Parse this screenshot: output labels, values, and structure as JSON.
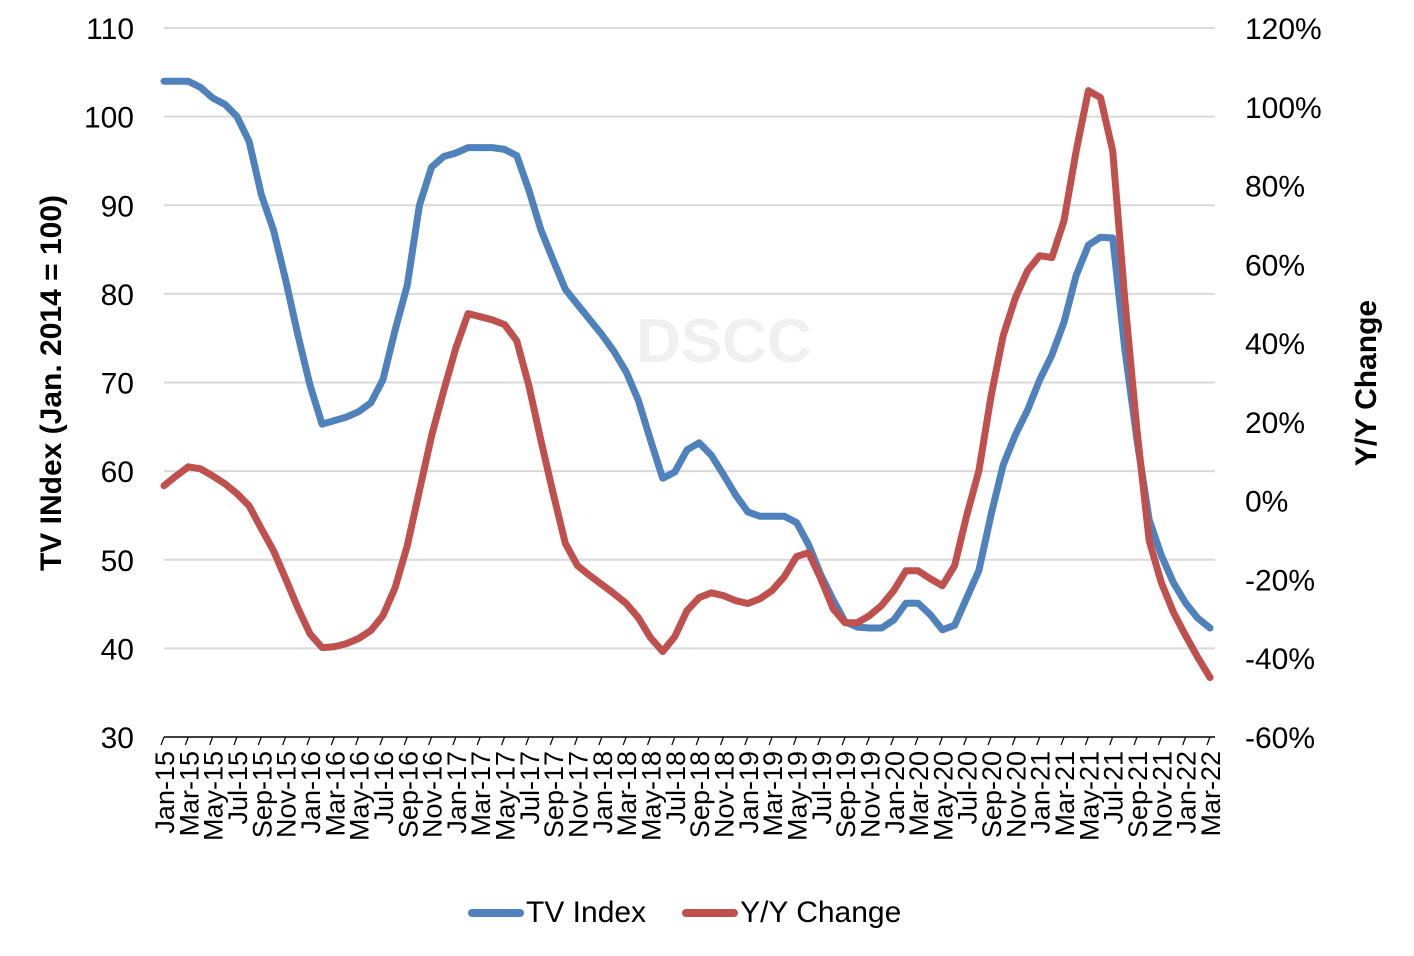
{
  "chart_data": {
    "type": "line",
    "title": "",
    "watermark": "DSCC",
    "ylabel": "TV INdex (Jan. 2014 = 100)",
    "y2label": "Y/Y Change",
    "ylim": [
      30,
      110
    ],
    "y2lim": [
      -60,
      120
    ],
    "yticks": [
      30,
      40,
      50,
      60,
      70,
      80,
      90,
      100,
      110
    ],
    "y2ticks": [
      "-60%",
      "-40%",
      "-20%",
      "0%",
      "20%",
      "40%",
      "60%",
      "80%",
      "100%",
      "120%"
    ],
    "grid": true,
    "legend_position": "bottom",
    "xtick_labels": [
      "Jan-15",
      "Mar-15",
      "May-15",
      "Jul-15",
      "Sep-15",
      "Nov-15",
      "Jan-16",
      "Mar-16",
      "May-16",
      "Jul-16",
      "Sep-16",
      "Nov-16",
      "Jan-17",
      "Mar-17",
      "May-17",
      "Jul-17",
      "Sep-17",
      "Nov-17",
      "Jan-18",
      "Mar-18",
      "May-18",
      "Jul-18",
      "Sep-18",
      "Nov-18",
      "Jan-19",
      "Mar-19",
      "May-19",
      "Jul-19",
      "Sep-19",
      "Nov-19",
      "Jan-20",
      "Mar-20",
      "May-20",
      "Jul-20",
      "Sep-20",
      "Nov-20",
      "Jan-21",
      "Mar-21",
      "May-21",
      "Jul-21",
      "Sep-21",
      "Nov-21",
      "Jan-22",
      "Mar-22"
    ],
    "x_start": "Jan-15",
    "x_end": "Mar-22",
    "x_frequency": "monthly",
    "series": [
      {
        "name": "TV Index",
        "axis": "left",
        "color": "#4f81bd",
        "values": [
          104,
          104,
          104,
          103.3,
          102.1,
          101.4,
          100,
          97.2,
          91.2,
          87.2,
          81.6,
          75.4,
          69.7,
          65.3,
          65.7,
          66.1,
          66.7,
          67.7,
          70.3,
          75.9,
          81,
          90,
          94.3,
          95.5,
          95.9,
          96.5,
          96.5,
          96.5,
          96.3,
          95.6,
          91.7,
          87.2,
          83.8,
          80.5,
          78.8,
          77.1,
          75.4,
          73.5,
          71.2,
          68,
          63.5,
          59.2,
          59.9,
          62.4,
          63.2,
          61.8,
          59.6,
          57.3,
          55.4,
          54.9,
          54.9,
          54.9,
          54.2,
          51.7,
          48.3,
          45.5,
          43,
          42.4,
          42.3,
          42.3,
          43.2,
          45.1,
          45.1,
          43.8,
          42.1,
          42.6,
          45.7,
          48.8,
          55.1,
          60.7,
          64.1,
          66.9,
          70.3,
          73.1,
          76.8,
          82.1,
          85.5,
          86.4,
          86.3,
          73.7,
          63.5,
          54.5,
          50.5,
          47.4,
          45.1,
          43.4,
          42.3
        ]
      },
      {
        "name": "Y/Y Change",
        "axis": "right",
        "color": "#c0504d",
        "values": [
          3.8,
          6.3,
          8.6,
          8.1,
          6.3,
          4.3,
          1.8,
          -1.3,
          -7.1,
          -12.7,
          -19.8,
          -27.2,
          -33.8,
          -37.3,
          -37.1,
          -36.3,
          -35,
          -33,
          -29.2,
          -22.1,
          -11.4,
          2.5,
          16.5,
          27.9,
          38.8,
          47.5,
          46.7,
          45.9,
          44.7,
          40.6,
          29.2,
          15.2,
          1.8,
          -10.9,
          -16.5,
          -19,
          -21.3,
          -23.6,
          -26.1,
          -29.7,
          -34.8,
          -38.3,
          -34.5,
          -27.9,
          -24.6,
          -23.4,
          -24.1,
          -25.4,
          -26.1,
          -24.9,
          -22.8,
          -19.3,
          -14.2,
          -13.2,
          -19.8,
          -27.4,
          -31,
          -31,
          -29.2,
          -26.6,
          -22.8,
          -17.8,
          -17.8,
          -19.8,
          -21.6,
          -16.5,
          -3.8,
          7.6,
          26.6,
          41.9,
          51.5,
          58.4,
          62.2,
          61.7,
          71.1,
          88.8,
          104.1,
          102.3,
          88.8,
          50.8,
          17.8,
          -10.2,
          -20.8,
          -28.4,
          -34.3,
          -39.8,
          -44.9
        ]
      }
    ]
  },
  "legend": {
    "items": [
      {
        "label": "TV Index",
        "color": "#4f81bd"
      },
      {
        "label": "Y/Y Change",
        "color": "#c0504d"
      }
    ]
  }
}
